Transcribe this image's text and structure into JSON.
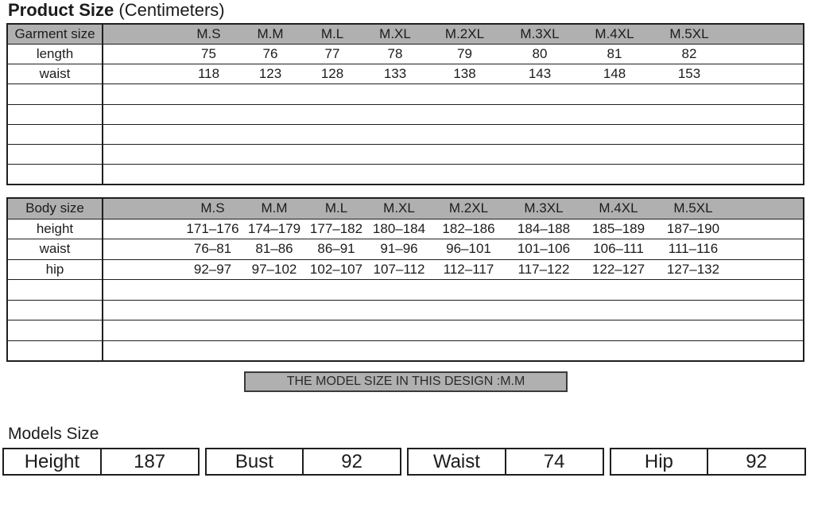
{
  "page": {
    "title": "Product Size",
    "title_suffix": "(Centimeters)"
  },
  "colors": {
    "header_gray": "#b0b0b0",
    "banner_gray": "#b0b0b0",
    "border": "#1f1f1f",
    "background": "#ffffff",
    "text": "#1c1c1c"
  },
  "sizes": [
    "M.S",
    "M.M",
    "M.L",
    "M.XL",
    "M.2XL",
    "M.3XL",
    "M.4XL",
    "M.5XL"
  ],
  "garment_table": {
    "header_label": "Garment size",
    "rows": [
      {
        "label": "length",
        "values": [
          "75",
          "76",
          "77",
          "78",
          "79",
          "80",
          "81",
          "82"
        ]
      },
      {
        "label": "waist",
        "values": [
          "118",
          "123",
          "128",
          "133",
          "138",
          "143",
          "148",
          "153"
        ]
      }
    ],
    "empty_row_count": 5
  },
  "body_table": {
    "header_label": "Body size",
    "rows": [
      {
        "label": "height",
        "values": [
          "171–176",
          "174–179",
          "177–182",
          "180–184",
          "182–186",
          "184–188",
          "185–189",
          "187–190"
        ]
      },
      {
        "label": "waist",
        "values": [
          "76–81",
          "81–86",
          "86–91",
          "91–96",
          "96–101",
          "101–106",
          "106–111",
          "111–116"
        ]
      },
      {
        "label": "hip",
        "values": [
          "92–97",
          "97–102",
          "102–107",
          "107–112",
          "112–117",
          "117–122",
          "122–127",
          "127–132"
        ]
      }
    ],
    "empty_row_count": 4
  },
  "banner": {
    "text": "THE MODEL SIZE IN THIS DESIGN :M.M"
  },
  "models": {
    "title": "Models Size",
    "stats": [
      {
        "label": "Height",
        "value": "187"
      },
      {
        "label": "Bust",
        "value": "92"
      },
      {
        "label": "Waist",
        "value": "74"
      },
      {
        "label": "Hip",
        "value": "92"
      }
    ]
  }
}
